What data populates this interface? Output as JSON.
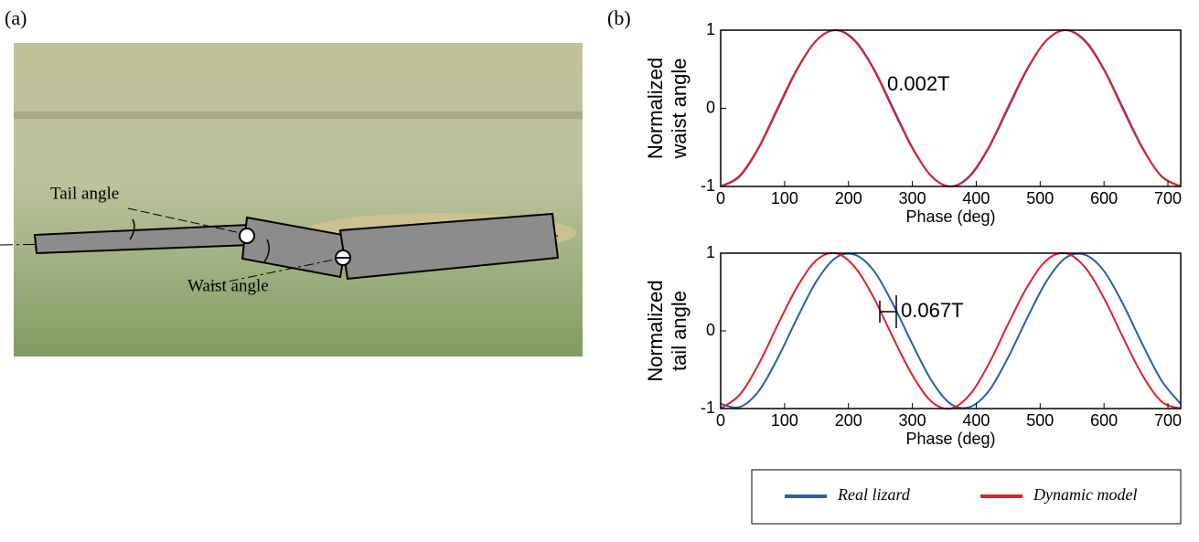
{
  "panel_labels": [
    "(a)",
    "(b)"
  ],
  "photo_labels": {
    "tail": "Tail angle",
    "waist": "Waist angle"
  },
  "chart_data": [
    {
      "type": "line",
      "ylabel": [
        "Normalized",
        "waist angle"
      ],
      "xlabel": "Phase (deg)",
      "annotation": "0.002T",
      "x": [
        0,
        30,
        60,
        90,
        120,
        150,
        180,
        210,
        240,
        270,
        300,
        330,
        360,
        390,
        420,
        450,
        480,
        510,
        540,
        570,
        600,
        630,
        660,
        690,
        720
      ],
      "series": [
        {
          "name": "Real lizard",
          "color": "#2a5db0",
          "values": [
            -1,
            -0.87,
            -0.5,
            0,
            0.5,
            0.87,
            1,
            0.87,
            0.5,
            0,
            -0.5,
            -0.87,
            -1,
            -0.87,
            -0.5,
            0,
            0.5,
            0.87,
            1,
            0.87,
            0.5,
            0,
            -0.5,
            -0.87,
            -1
          ]
        },
        {
          "name": "Dynamic model",
          "color": "#e0202a",
          "values": [
            -1,
            -0.86,
            -0.49,
            0.02,
            0.51,
            0.87,
            1,
            0.86,
            0.49,
            -0.02,
            -0.51,
            -0.87,
            -1,
            -0.86,
            -0.49,
            0.02,
            0.51,
            0.87,
            1,
            0.86,
            0.49,
            -0.02,
            -0.51,
            -0.87,
            -1
          ]
        }
      ],
      "xlim": [
        0,
        720
      ],
      "xticks": [
        0,
        100,
        200,
        300,
        400,
        500,
        600,
        700
      ],
      "ylim": [
        -1,
        1
      ],
      "yticks": [
        -1,
        0,
        1
      ]
    },
    {
      "type": "line",
      "ylabel": [
        "Normalized",
        "tail angle"
      ],
      "xlabel": "Phase (deg)",
      "annotation": "0.067T",
      "x": [
        0,
        30,
        60,
        90,
        120,
        150,
        180,
        210,
        240,
        270,
        300,
        330,
        360,
        390,
        420,
        450,
        480,
        510,
        540,
        570,
        600,
        630,
        660,
        690,
        720
      ],
      "series": [
        {
          "name": "Real lizard",
          "color": "#2a5db0",
          "values": [
            -0.94,
            -0.98,
            -0.77,
            -0.34,
            0.17,
            0.64,
            0.94,
            0.98,
            0.77,
            0.34,
            -0.17,
            -0.64,
            -0.94,
            -0.98,
            -0.77,
            -0.34,
            0.17,
            0.64,
            0.94,
            0.98,
            0.77,
            0.34,
            -0.17,
            -0.64,
            -0.94
          ]
        },
        {
          "name": "Dynamic model",
          "color": "#e0202a",
          "values": [
            -1,
            -0.82,
            -0.42,
            0.09,
            0.57,
            0.91,
            1,
            0.82,
            0.42,
            -0.09,
            -0.57,
            -0.91,
            -1,
            -0.82,
            -0.42,
            0.09,
            0.57,
            0.91,
            1,
            0.82,
            0.42,
            -0.09,
            -0.57,
            -0.91,
            -1
          ]
        }
      ],
      "xlim": [
        0,
        720
      ],
      "xticks": [
        0,
        100,
        200,
        300,
        400,
        500,
        600,
        700
      ],
      "ylim": [
        -1,
        1
      ],
      "yticks": [
        -1,
        0,
        1
      ]
    }
  ]
}
